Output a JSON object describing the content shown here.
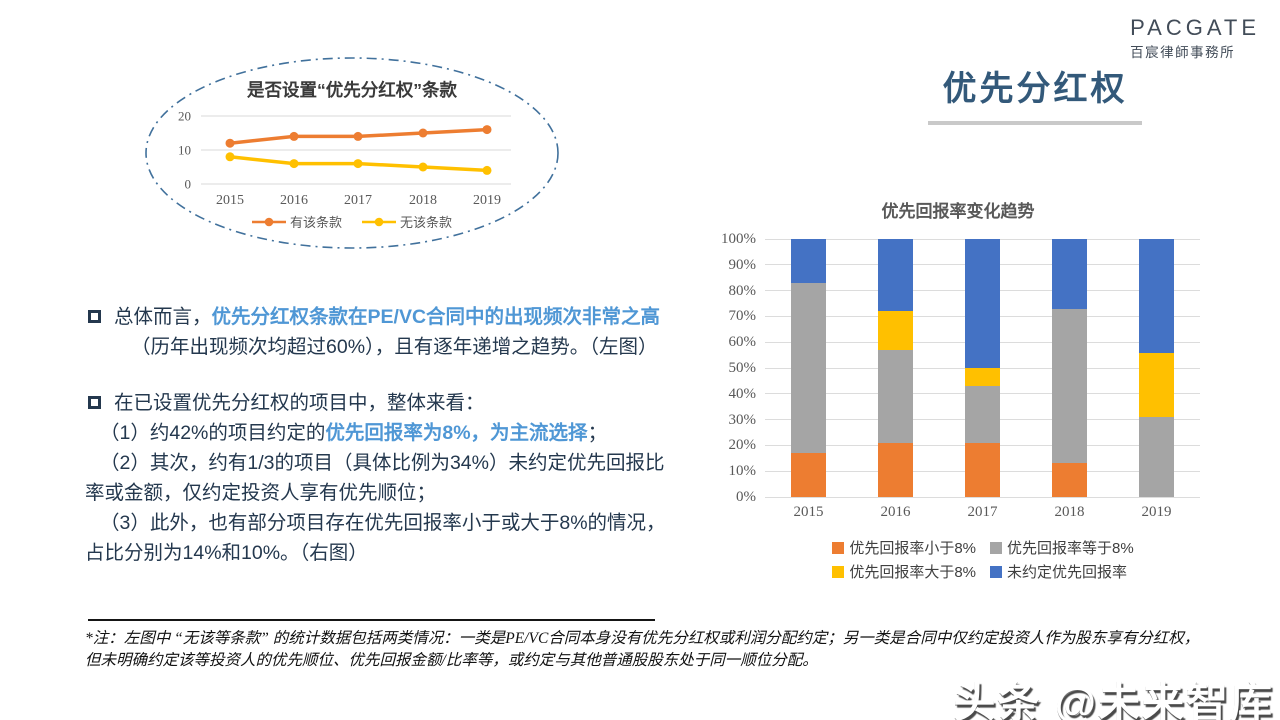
{
  "logo": {
    "name": "PACGATE",
    "subtitle": "百宸律師事務所"
  },
  "page_title": "优先分红权",
  "colors": {
    "accent_text": "#4f97d5",
    "body_text": "#24384e",
    "page_title": "#33597a",
    "axis_text": "#595959",
    "grid_line": "#dcdcdc",
    "ellipse_stroke": "#41719c",
    "orange": "#ed7d31",
    "gray": "#a5a5a5",
    "yellow": "#ffc000",
    "blue": "#4472c4"
  },
  "chart_data": [
    {
      "type": "line",
      "title": "是否设置“优先分红权”条款",
      "x": [
        "2015",
        "2016",
        "2017",
        "2018",
        "2019"
      ],
      "series": [
        {
          "name": "有该条款",
          "color": "#ed7d31",
          "values": [
            12,
            14,
            14,
            15,
            16
          ]
        },
        {
          "name": "无该条款",
          "color": "#ffc000",
          "values": [
            8,
            6,
            6,
            5,
            4
          ]
        }
      ],
      "ylim": [
        0,
        20
      ],
      "yticks": [
        "0",
        "10",
        "20"
      ],
      "grid": true,
      "legend_position": "bottom"
    },
    {
      "type": "bar",
      "stacked": true,
      "title": "优先回报率变化趋势",
      "categories": [
        "2015",
        "2016",
        "2017",
        "2018",
        "2019"
      ],
      "series": [
        {
          "name": "优先回报率小于8%",
          "color": "#ed7d31",
          "values": [
            17,
            21,
            21,
            13,
            0
          ]
        },
        {
          "name": "优先回报率等于8%",
          "color": "#a5a5a5",
          "values": [
            66,
            36,
            22,
            60,
            31
          ]
        },
        {
          "name": "优先回报率大于8%",
          "color": "#ffc000",
          "values": [
            0,
            15,
            7,
            0,
            25
          ]
        },
        {
          "name": "未约定优先回报率",
          "color": "#4472c4",
          "values": [
            17,
            28,
            50,
            27,
            44
          ]
        }
      ],
      "ylim": [
        0,
        100
      ],
      "yticks": [
        "0%",
        "10%",
        "20%",
        "30%",
        "40%",
        "50%",
        "60%",
        "70%",
        "80%",
        "90%",
        "100%"
      ],
      "grid": true,
      "legend_position": "bottom"
    }
  ],
  "bullets": [
    {
      "kind": "bullet",
      "segments": [
        {
          "t": "总体而言，"
        },
        {
          "t": "优先分红权条款在PE/VC合同中的出现频次非常之高",
          "hl": true
        }
      ]
    },
    {
      "kind": "cont",
      "segments": [
        {
          "t": "（历年出现频次均超过60%），且有逐年递增之趋势。（左图）"
        }
      ]
    },
    {
      "kind": "gap",
      "segments": []
    },
    {
      "kind": "bullet",
      "segments": [
        {
          "t": "在已设置优先分红权的项目中，整体来看："
        }
      ]
    },
    {
      "kind": "sub",
      "segments": [
        {
          "t": "（1）约42%的项目约定的"
        },
        {
          "t": "优先回报率为8%，为主流选择",
          "hl": true
        },
        {
          "t": "；"
        }
      ]
    },
    {
      "kind": "sub",
      "segments": [
        {
          "t": "（2）其次，约有1/3的项目（具体比例为34%）未约定优先回报比率或金额，仅约定投资人享有优先顺位；"
        }
      ]
    },
    {
      "kind": "sub",
      "segments": [
        {
          "t": "（3）此外，也有部分项目存在优先回报率小于或大于8%的情况，占比分别为14%和10%。（右图）"
        }
      ]
    }
  ],
  "footnote": "*注：左图中 “无该等条款” 的统计数据包括两类情况：一类是PE/VC合同本身没有优先分红权或利润分配约定；另一类是合同中仅约定投资人作为股东享有分红权，但未明确约定该等投资人的优先顺位、优先回报金额/比率等，或约定与其他普通股股东处于同一顺位分配。",
  "watermark": "头条 @未来智库"
}
